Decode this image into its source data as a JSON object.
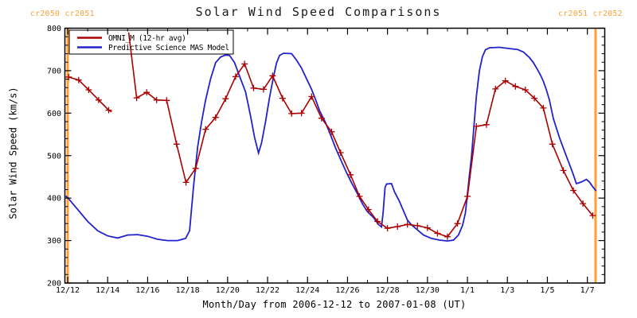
{
  "title": "Solar Wind Speed Comparisons",
  "cr_labels": {
    "left": "cr2050 cr2051",
    "right": "cr2051 cr2052"
  },
  "colors": {
    "omni_red": "#aa0000",
    "mas_blue": "#2222cc",
    "carrington_orange": "#ffa033",
    "axis_black": "#000000",
    "background": "#ffffff"
  },
  "legend": {
    "position": "top-left inside plot",
    "items": [
      {
        "label": "OMNI_M (12-hr avg)",
        "color_key": "omni_red"
      },
      {
        "label": "Predictive Science MAS Model",
        "color_key": "mas_blue"
      }
    ]
  },
  "chart_data": {
    "type": "line",
    "title": "Solar Wind Speed Comparisons",
    "xlabel": "Month/Day from 2006-12-12 to 2007-01-08 (UT)",
    "ylabel": "Solar Wind Speed (km/s)",
    "x_unit_days_since": "2006-12-12 00:00 UT",
    "xlim_days": [
      -0.14,
      26.87
    ],
    "ylim": [
      200,
      800
    ],
    "y_major_tick_step": 100,
    "y_minor_tick_step": 20,
    "y_tick_labels": [
      "200",
      "300",
      "400",
      "500",
      "600",
      "700",
      "800"
    ],
    "x_major_ticks": [
      {
        "day": 0,
        "label": "12/12"
      },
      {
        "day": 2,
        "label": "12/14"
      },
      {
        "day": 4,
        "label": "12/16"
      },
      {
        "day": 6,
        "label": "12/18"
      },
      {
        "day": 8,
        "label": "12/20"
      },
      {
        "day": 10,
        "label": "12/22"
      },
      {
        "day": 12,
        "label": "12/24"
      },
      {
        "day": 14,
        "label": "12/26"
      },
      {
        "day": 16,
        "label": "12/28"
      },
      {
        "day": 18,
        "label": "12/30"
      },
      {
        "day": 20,
        "label": "1/1"
      },
      {
        "day": 22,
        "label": "1/3"
      },
      {
        "day": 24,
        "label": "1/5"
      },
      {
        "day": 26,
        "label": "1/7"
      }
    ],
    "x_minor_tick_days": [
      1,
      3,
      5,
      7,
      9,
      11,
      13,
      15,
      17,
      19,
      21,
      23,
      25
    ],
    "carrington_boundary_days": [
      0,
      26.41
    ],
    "series": [
      {
        "name": "Predictive Science MAS Model",
        "color_key": "mas_blue",
        "marker": "none",
        "segments": [
          [
            [
              -0.1,
              405
            ],
            [
              0,
              401
            ],
            [
              0.5,
              373
            ],
            [
              1,
              345
            ],
            [
              1.5,
              323
            ],
            [
              2,
              311
            ],
            [
              2.5,
              306
            ],
            [
              3,
              313
            ],
            [
              3.5,
              314
            ],
            [
              4,
              310
            ],
            [
              4.5,
              303
            ],
            [
              5,
              300
            ],
            [
              5.5,
              300
            ],
            [
              5.9,
              305
            ],
            [
              6.1,
              323
            ],
            [
              6.3,
              430
            ],
            [
              6.5,
              520
            ],
            [
              6.7,
              580
            ],
            [
              6.9,
              631
            ],
            [
              7.15,
              681
            ],
            [
              7.4,
              719
            ],
            [
              7.65,
              732
            ],
            [
              7.9,
              737
            ],
            [
              8.1,
              736
            ],
            [
              8.35,
              719
            ],
            [
              8.6,
              687
            ],
            [
              8.9,
              650
            ],
            [
              9.15,
              593
            ],
            [
              9.35,
              543
            ],
            [
              9.55,
              506
            ],
            [
              9.7,
              530
            ],
            [
              9.9,
              580
            ],
            [
              10.1,
              637
            ],
            [
              10.3,
              687
            ],
            [
              10.45,
              718
            ],
            [
              10.6,
              736
            ],
            [
              10.8,
              741
            ],
            [
              11.2,
              740
            ],
            [
              11.45,
              725
            ],
            [
              11.7,
              706
            ],
            [
              11.95,
              681
            ],
            [
              12.2,
              656
            ],
            [
              12.4,
              632
            ],
            [
              12.6,
              606
            ],
            [
              12.9,
              578
            ],
            [
              13.15,
              549
            ],
            [
              13.4,
              518
            ],
            [
              13.7,
              486
            ],
            [
              13.95,
              460
            ],
            [
              14.2,
              436
            ],
            [
              14.5,
              410
            ],
            [
              14.75,
              386
            ],
            [
              15,
              368
            ],
            [
              15.3,
              354
            ],
            [
              15.55,
              338
            ],
            [
              15.7,
              332
            ],
            [
              15.78,
              365
            ],
            [
              15.88,
              425
            ],
            [
              15.95,
              433
            ],
            [
              16.2,
              434
            ],
            [
              16.35,
              415
            ],
            [
              16.6,
              392
            ],
            [
              16.8,
              370
            ],
            [
              17,
              348
            ],
            [
              17.2,
              337
            ],
            [
              17.4,
              329
            ],
            [
              17.8,
              313
            ],
            [
              18.2,
              305
            ],
            [
              18.6,
              301
            ],
            [
              19,
              299
            ],
            [
              19.3,
              301
            ],
            [
              19.55,
              313
            ],
            [
              19.75,
              335
            ],
            [
              19.9,
              365
            ],
            [
              20,
              411
            ],
            [
              20.1,
              455
            ],
            [
              20.2,
              497
            ],
            [
              20.3,
              555
            ],
            [
              20.45,
              640
            ],
            [
              20.6,
              700
            ],
            [
              20.75,
              733
            ],
            [
              20.9,
              749
            ],
            [
              21.1,
              754
            ],
            [
              21.6,
              755
            ],
            [
              22.1,
              752
            ],
            [
              22.5,
              750
            ],
            [
              22.8,
              744
            ],
            [
              23.1,
              731
            ],
            [
              23.3,
              719
            ],
            [
              23.5,
              703
            ],
            [
              23.65,
              690
            ],
            [
              23.8,
              675
            ],
            [
              23.95,
              655
            ],
            [
              24.1,
              631
            ],
            [
              24.3,
              587
            ],
            [
              24.6,
              543
            ],
            [
              24.9,
              505
            ],
            [
              25.15,
              474
            ],
            [
              25.3,
              455
            ],
            [
              25.45,
              434
            ],
            [
              25.7,
              438
            ],
            [
              25.95,
              444
            ],
            [
              26.1,
              438
            ],
            [
              26.25,
              428
            ],
            [
              26.43,
              417
            ]
          ]
        ]
      },
      {
        "name": "OMNI_M (12-hr avg)",
        "color_key": "omni_red",
        "marker": "plus",
        "segments": [
          [
            [
              0.05,
              685
            ],
            [
              0.55,
              678
            ],
            [
              1.05,
              655
            ],
            [
              1.55,
              631
            ],
            [
              2.05,
              607
            ],
            [
              2.2,
              603
            ]
          ],
          [
            [
              3.05,
              790
            ],
            [
              3.45,
              636
            ],
            [
              3.95,
              649
            ],
            [
              4.45,
              631
            ],
            [
              4.95,
              630
            ],
            [
              5.45,
              527
            ],
            [
              5.92,
              437
            ],
            [
              6.4,
              470
            ],
            [
              6.9,
              562
            ],
            [
              7.4,
              590
            ],
            [
              7.9,
              634
            ],
            [
              8.4,
              686
            ],
            [
              8.85,
              716
            ],
            [
              9.3,
              659
            ],
            [
              9.8,
              656
            ],
            [
              10.25,
              688
            ],
            [
              10.75,
              635
            ],
            [
              11.2,
              599
            ],
            [
              11.7,
              600
            ],
            [
              12.2,
              639
            ],
            [
              12.7,
              588
            ],
            [
              13.2,
              556
            ],
            [
              13.65,
              507
            ],
            [
              14.15,
              455
            ],
            [
              14.6,
              404
            ],
            [
              15.05,
              373
            ],
            [
              15.5,
              345
            ],
            [
              16,
              329
            ],
            [
              16.5,
              333
            ],
            [
              17,
              338
            ],
            [
              17.5,
              335
            ],
            [
              18,
              330
            ],
            [
              18.5,
              317
            ],
            [
              19,
              309
            ],
            [
              19.5,
              340
            ],
            [
              20,
              404
            ],
            [
              20.45,
              569
            ],
            [
              20.95,
              573
            ],
            [
              21.4,
              657
            ],
            [
              21.9,
              676
            ],
            [
              22.4,
              663
            ],
            [
              22.9,
              655
            ],
            [
              23.35,
              635
            ],
            [
              23.8,
              612
            ],
            [
              24.25,
              527
            ],
            [
              24.8,
              465
            ],
            [
              25.3,
              418
            ],
            [
              25.78,
              387
            ],
            [
              26.27,
              359
            ]
          ]
        ],
        "unmarked_points": [
          [
            3.05,
            790
          ],
          [
            2.2,
            603
          ]
        ]
      }
    ]
  }
}
